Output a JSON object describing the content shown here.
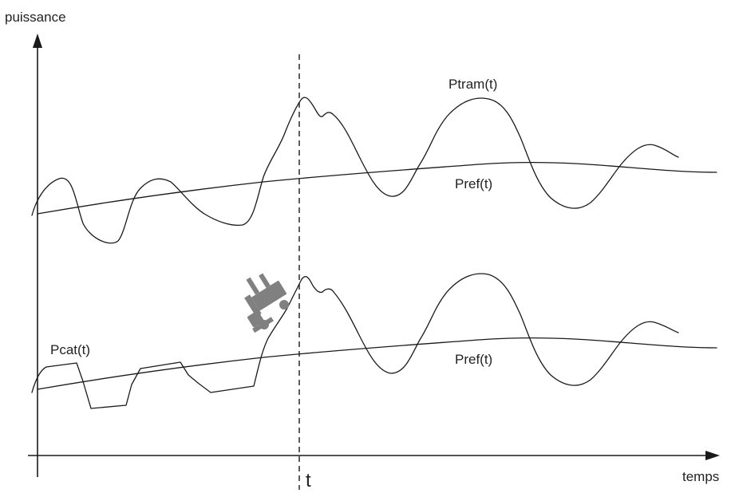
{
  "axes": {
    "y_label": "puissance",
    "x_label": "temps",
    "time_marker": "t"
  },
  "curves": {
    "ptram": "Ptram(t)",
    "pref_top": "Pref(t)",
    "pcat": "Pcat(t)",
    "pref_bottom": "Pref(t)"
  },
  "icons": {
    "pantograph": "pantograph-icon"
  },
  "colors": {
    "line": "#1a1a1a",
    "icon": "#808080"
  }
}
